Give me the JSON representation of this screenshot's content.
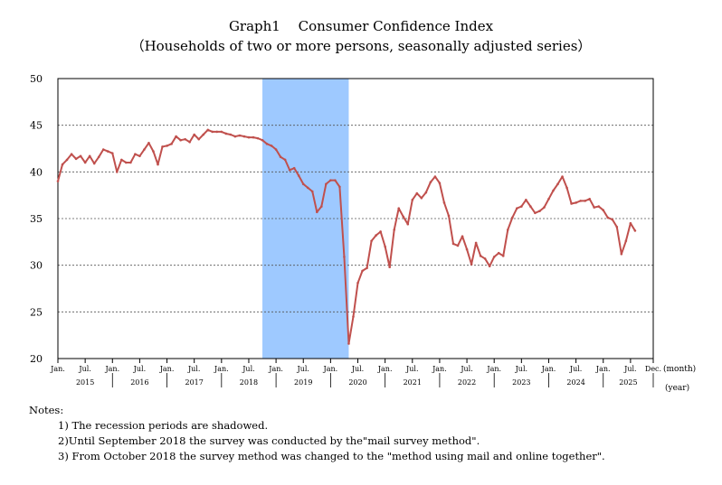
{
  "chart_data": {
    "type": "line",
    "title": "Graph1　 Consumer Confidence Index",
    "subtitle": "（Households of two or more persons, seasonally adjusted series）",
    "xlabel_unit_month": "(month)",
    "xlabel_unit_year": "(year)",
    "ylim": [
      20,
      50
    ],
    "yticks": [
      "50",
      "45",
      "40",
      "35",
      "30",
      "25",
      "20"
    ],
    "grid": "dashed horizontal",
    "line_color": "#c0504d",
    "shade_color": "#9ec9ff",
    "shaded_period": {
      "start": "2018-10",
      "end": "2020-05"
    },
    "x_start": "2015-01",
    "x_end": "2025-12",
    "month_ticks": [
      {
        "month": "2015-01",
        "label": "Jan."
      },
      {
        "month": "2015-07",
        "label": "Jul."
      },
      {
        "month": "2016-01",
        "label": "Jan."
      },
      {
        "month": "2016-07",
        "label": "Jul."
      },
      {
        "month": "2017-01",
        "label": "Jan."
      },
      {
        "month": "2017-07",
        "label": "Jul."
      },
      {
        "month": "2018-01",
        "label": "Jan."
      },
      {
        "month": "2018-07",
        "label": "Jul."
      },
      {
        "month": "2019-01",
        "label": "Jan."
      },
      {
        "month": "2019-07",
        "label": "Jul."
      },
      {
        "month": "2020-01",
        "label": "Jan."
      },
      {
        "month": "2020-07",
        "label": "Jul."
      },
      {
        "month": "2021-01",
        "label": "Jan."
      },
      {
        "month": "2021-07",
        "label": "Jul."
      },
      {
        "month": "2022-01",
        "label": "Jan."
      },
      {
        "month": "2022-07",
        "label": "Jul."
      },
      {
        "month": "2023-01",
        "label": "Jan."
      },
      {
        "month": "2023-07",
        "label": "Jul."
      },
      {
        "month": "2024-01",
        "label": "Jan."
      },
      {
        "month": "2024-07",
        "label": "Jul."
      },
      {
        "month": "2025-01",
        "label": "Jan."
      },
      {
        "month": "2025-07",
        "label": "Jul."
      },
      {
        "month": "2025-12",
        "label": "Dec."
      }
    ],
    "years": [
      "2015",
      "2016",
      "2017",
      "2018",
      "2019",
      "2020",
      "2021",
      "2022",
      "2023",
      "2024",
      "2025"
    ],
    "series": [
      {
        "x_start": "2015-01",
        "values": [
          39.0,
          40.8,
          41.3,
          41.9,
          41.4,
          41.7,
          41.0,
          41.7,
          40.9,
          41.6,
          42.4,
          42.2,
          42.0,
          40.0,
          41.3,
          41.0,
          41.0,
          41.9,
          41.7,
          42.4,
          43.1,
          42.2,
          40.8,
          42.7,
          42.8,
          43.0,
          43.8,
          43.4,
          43.5,
          43.2,
          44.0,
          43.5,
          44.0,
          44.5,
          44.3,
          44.3,
          44.3,
          44.1,
          44.0,
          43.8,
          43.9,
          43.8,
          43.7,
          43.7,
          43.6,
          43.4,
          43.0,
          42.8,
          42.4,
          41.6,
          41.3,
          40.2,
          40.4,
          39.6,
          38.7,
          38.3,
          37.9,
          35.7,
          36.3,
          38.7,
          39.1,
          39.1,
          38.4,
          30.9,
          21.6,
          24.5,
          28.1,
          29.4,
          29.7,
          32.6,
          33.2,
          33.6,
          32.0,
          29.8,
          33.8,
          36.1,
          35.2,
          34.4,
          37.0,
          37.7,
          37.2,
          37.8,
          38.9,
          39.5,
          38.8,
          36.7,
          35.3,
          32.3,
          32.1,
          33.1,
          31.7,
          30.1,
          32.4,
          31.0,
          30.7,
          29.9,
          30.9,
          31.3,
          31.0,
          33.8,
          35.1,
          36.1,
          36.3,
          37.0,
          36.3,
          35.6,
          35.8,
          36.2,
          37.1,
          38.0,
          38.7,
          39.5,
          38.3,
          36.6,
          36.7,
          36.9,
          36.9,
          37.1,
          36.2,
          36.3,
          35.9,
          35.1,
          34.9,
          34.1,
          31.2,
          32.6,
          34.5,
          33.7
        ]
      }
    ]
  },
  "notes": {
    "heading": "Notes:",
    "items": [
      "1) The recession periods are shadowed.",
      "2)Until September 2018 the survey was conducted by the\"mail survey method\".",
      "3) From October 2018 the survey method was changed to the \"method using mail and online together\"."
    ]
  }
}
